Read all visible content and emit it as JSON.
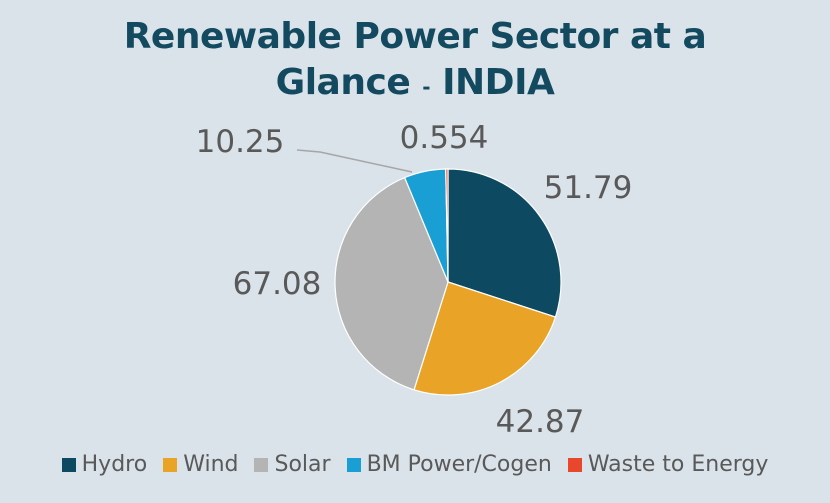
{
  "chart_data": {
    "type": "pie",
    "title_main": "Renewable Power Sector at a",
    "title_line2": "Glance",
    "title_sep": "-",
    "title_country": "INDIA",
    "categories": [
      "Hydro",
      "Wind",
      "Solar",
      "BM Power/Cogen",
      "Waste to Energy"
    ],
    "values": [
      51.79,
      42.87,
      67.08,
      10.25,
      0.554
    ],
    "value_labels": [
      "51.79",
      "42.87",
      "67.08",
      "10.25",
      "0.554"
    ],
    "colors": [
      "#0d4a61",
      "#e9a428",
      "#b4b4b4",
      "#1a9fd4",
      "#e8472b"
    ],
    "legend_position": "bottom"
  }
}
